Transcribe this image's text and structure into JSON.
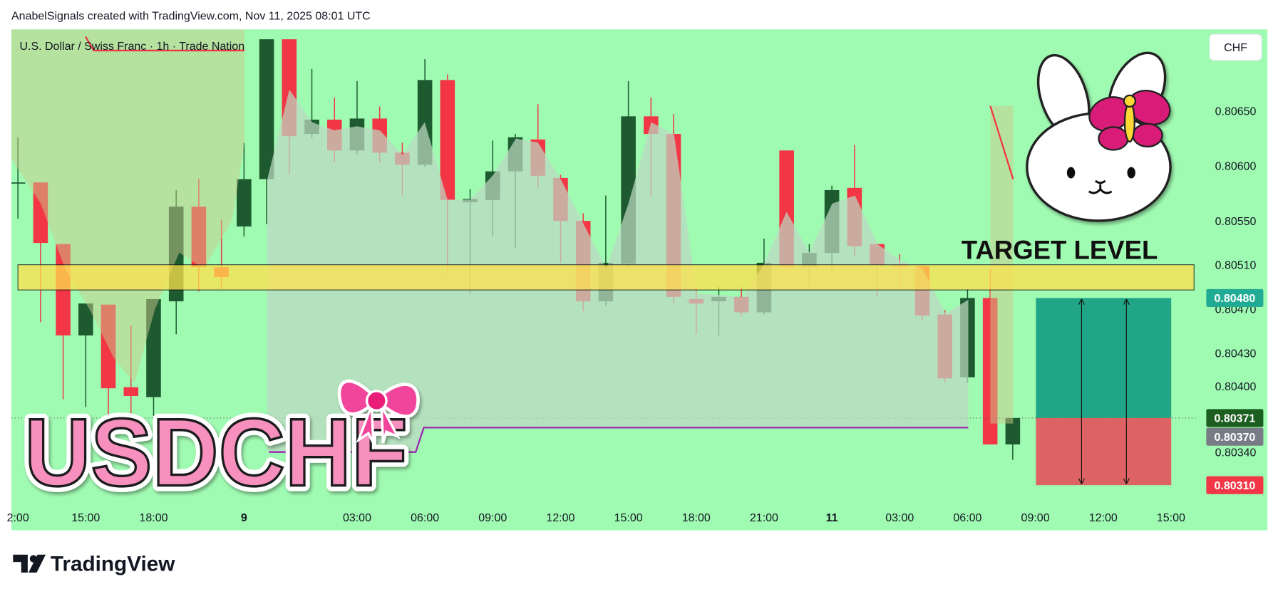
{
  "header": "AnabelSignals created with TradingView.com, Nov 11, 2025 08:01 UTC",
  "footer": {
    "brand": "TradingView"
  },
  "chart_data": {
    "type": "candlestick",
    "title": "U.S. Dollar / Swiss Franc · 1h · Trade Nation",
    "currency": "CHF",
    "categories": [
      "2:00",
      null,
      null,
      "15:00",
      null,
      null,
      "18:00",
      null,
      null,
      null,
      "9",
      null,
      null,
      null,
      null,
      "03:00",
      null,
      null,
      "06:00",
      null,
      null,
      "09:00",
      null,
      null,
      "12:00",
      null,
      null,
      "15:00",
      null,
      null,
      "18:00",
      null,
      null,
      "21:00",
      null,
      null,
      "11",
      null,
      null,
      "03:00",
      null,
      null,
      "06:00",
      null,
      null,
      "09:00",
      null,
      null,
      "12:00",
      null,
      null,
      "15:00"
    ],
    "open": [
      0.80584,
      0.80585,
      0.80529,
      0.80446,
      0.80474,
      0.80399,
      0.8039,
      0.80477,
      0.80563,
      0.80508,
      0.80545,
      0.80588,
      0.80715,
      0.80629,
      0.80642,
      0.80614,
      0.80643,
      0.80612,
      0.80601,
      0.80678,
      0.80567,
      0.80569,
      0.80595,
      0.80624,
      0.80589,
      0.8055,
      0.80477,
      0.80511,
      0.80645,
      0.80629,
      0.80479,
      0.80477,
      0.80481,
      0.80467,
      0.80614,
      0.80508,
      0.80521,
      0.8058,
      0.80529,
      0.8051,
      0.80509,
      0.80465,
      0.80408,
      0.8048,
      0.80347,
      null,
      null,
      null,
      null,
      null,
      null,
      null
    ],
    "high": [
      0.80626,
      0.80585,
      0.80529,
      0.80475,
      0.80474,
      0.80455,
      0.80479,
      0.80578,
      0.80588,
      0.80551,
      0.80621,
      0.80715,
      0.80715,
      0.80688,
      0.80662,
      0.80677,
      0.80654,
      0.80621,
      0.80697,
      0.80683,
      0.80579,
      0.80623,
      0.80629,
      0.80656,
      0.80592,
      0.80557,
      0.80573,
      0.80677,
      0.80662,
      0.80647,
      0.8049,
      0.8049,
      0.8049,
      0.80534,
      0.80614,
      0.80529,
      0.80582,
      0.80619,
      0.80529,
      0.8052,
      0.80509,
      0.80469,
      0.80488,
      0.80506,
      0.80371,
      null,
      null,
      null,
      null,
      null,
      null,
      null
    ],
    "low": [
      0.80552,
      0.80458,
      0.80388,
      0.80381,
      0.80373,
      0.80373,
      0.80373,
      0.80447,
      0.80486,
      0.80488,
      0.80536,
      0.80547,
      0.80592,
      0.80625,
      0.80603,
      0.8061,
      0.80603,
      0.80573,
      0.80599,
      0.80503,
      0.80484,
      0.80536,
      0.80525,
      0.8058,
      0.80512,
      0.80468,
      0.80473,
      0.80506,
      0.80572,
      0.80475,
      0.80447,
      0.80446,
      0.80464,
      0.80465,
      0.80506,
      0.8049,
      0.80504,
      0.80518,
      0.80481,
      0.8049,
      0.8046,
      0.80403,
      0.80403,
      0.80347,
      0.80333,
      null,
      null,
      null,
      null,
      null,
      null,
      null
    ],
    "close": [
      0.80585,
      0.8053,
      0.80446,
      0.80475,
      0.80398,
      0.80391,
      0.80479,
      0.80563,
      0.80508,
      0.80499,
      0.80588,
      0.80715,
      0.80627,
      0.80642,
      0.80614,
      0.80643,
      0.80612,
      0.80601,
      0.80678,
      0.80569,
      0.8057,
      0.80595,
      0.80626,
      0.80591,
      0.8055,
      0.80477,
      0.80512,
      0.80645,
      0.80629,
      0.80481,
      0.80475,
      0.80481,
      0.80467,
      0.80512,
      0.80508,
      0.80521,
      0.80578,
      0.80527,
      0.8051,
      0.80508,
      0.80464,
      0.80407,
      0.8048,
      0.80347,
      0.80371,
      null,
      null,
      null,
      null,
      null,
      null,
      null
    ],
    "up_color": "#1d5a30",
    "down_color": "#f23645",
    "ylim": [
      0.80292,
      0.80724
    ],
    "yticks": [
      {
        "value": 0.8065,
        "label": "0.80650"
      },
      {
        "value": 0.806,
        "label": "0.80600"
      },
      {
        "value": 0.8055,
        "label": "0.80550"
      },
      {
        "value": 0.8051,
        "label": "0.80510"
      },
      {
        "value": 0.8047,
        "label": "0.80470"
      },
      {
        "value": 0.8043,
        "label": "0.80430"
      },
      {
        "value": 0.804,
        "label": "0.80400"
      },
      {
        "value": 0.8034,
        "label": "0.80340"
      }
    ],
    "price_badges": [
      {
        "value": 0.8048,
        "label": "0.80480",
        "color": "#22ab94"
      },
      {
        "value": 0.80371,
        "label": "0.80371",
        "color": "#1b5e20"
      },
      {
        "value": 0.8037,
        "label": "0.80370",
        "color": "#787b86"
      },
      {
        "value": 0.8031,
        "label": "0.80310",
        "color": "#f23645"
      }
    ],
    "annotations": {
      "target": "TARGET LEVEL",
      "sticker": "USDCHF"
    }
  }
}
